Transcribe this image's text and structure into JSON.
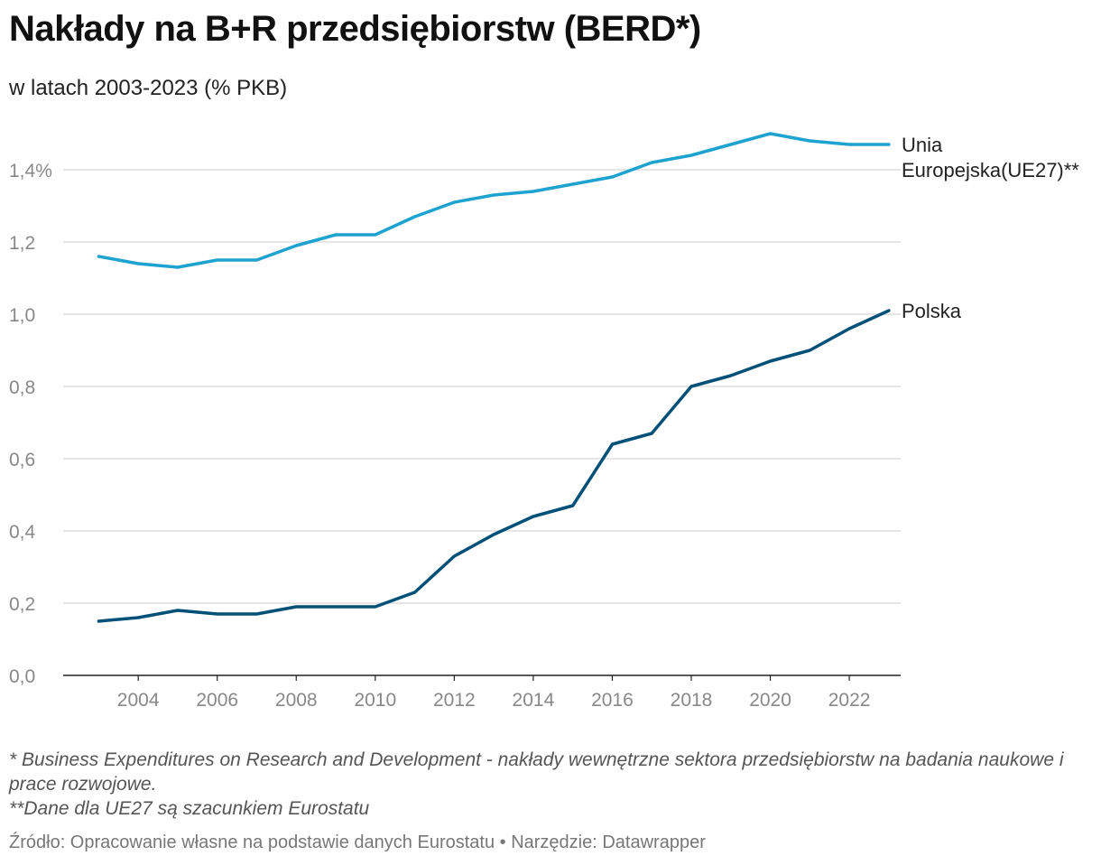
{
  "title": "Nakłady na B+R przedsiębiorstw (BERD*)",
  "subtitle": "w latach 2003-2023 (% PKB)",
  "notes": [
    "* Business Expenditures on Research and Development - nakłady wewnętrzne sektora przedsiębiorstw na badania naukowe i prace rozwojowe.",
    "**Dane dla UE27 są szacunkiem Eurostatu"
  ],
  "source": "Źródło: Opracowanie własne na podstawie danych Eurostatu • Narzędzie: Datawrapper",
  "chart_data": {
    "type": "line",
    "title": "Nakłady na B+R przedsiębiorstw (BERD*)",
    "xlabel": "",
    "ylabel": "% PKB",
    "x": [
      2003,
      2004,
      2005,
      2006,
      2007,
      2008,
      2009,
      2010,
      2011,
      2012,
      2013,
      2014,
      2015,
      2016,
      2017,
      2018,
      2019,
      2020,
      2021,
      2022,
      2023
    ],
    "xlim": [
      2002.1,
      2023.3
    ],
    "ylim": [
      0,
      1.5
    ],
    "y_ticks": [
      0.0,
      0.2,
      0.4,
      0.6,
      0.8,
      1.0,
      1.2,
      1.4
    ],
    "y_tick_labels": [
      "0,0",
      "0,2",
      "0,4",
      "0,6",
      "0,8",
      "1,0",
      "1,2",
      "1,4%"
    ],
    "x_ticks": [
      2004,
      2006,
      2008,
      2010,
      2012,
      2014,
      2016,
      2018,
      2020,
      2022
    ],
    "x_tick_labels": [
      "2004",
      "2006",
      "2008",
      "2010",
      "2012",
      "2014",
      "2016",
      "2018",
      "2020",
      "2022"
    ],
    "grid": true,
    "series": [
      {
        "name": "Unia Europejska(UE27)**",
        "label_lines": [
          "Unia",
          "Europejska(UE27)**"
        ],
        "color": "#1ea2d0",
        "values": [
          1.16,
          1.14,
          1.13,
          1.15,
          1.15,
          1.19,
          1.22,
          1.22,
          1.27,
          1.31,
          1.33,
          1.34,
          1.36,
          1.38,
          1.42,
          1.44,
          1.47,
          1.5,
          1.48,
          1.47,
          1.47
        ]
      },
      {
        "name": "Polska",
        "label_lines": [
          "Polska"
        ],
        "color": "#005078",
        "values": [
          0.15,
          0.16,
          0.18,
          0.17,
          0.17,
          0.19,
          0.19,
          0.19,
          0.23,
          0.33,
          0.39,
          0.44,
          0.47,
          0.64,
          0.67,
          0.8,
          0.83,
          0.87,
          0.9,
          0.96,
          1.01
        ]
      }
    ]
  }
}
